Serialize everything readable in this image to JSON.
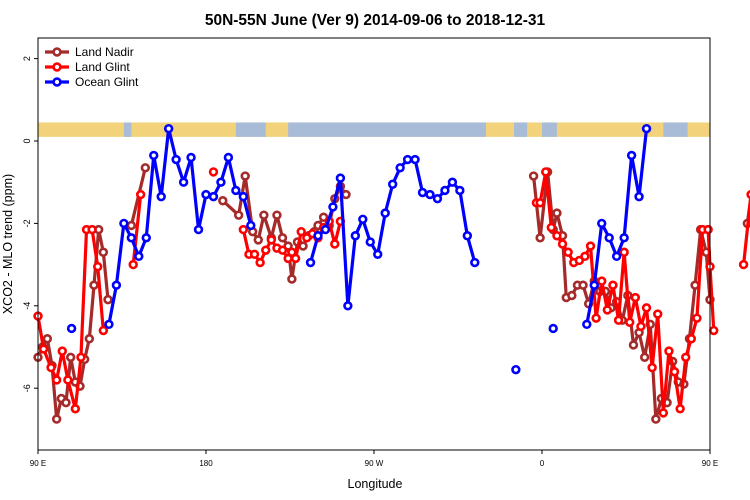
{
  "chart_data": {
    "type": "line",
    "title": "50N-55N June (Ver 9)   2014-09-06 to 2018-12-31",
    "xlabel": "Longitude",
    "ylabel": "XCO2 - MLO trend (ppm)",
    "xlim": [
      90,
      450
    ],
    "ylim": [
      -7.5,
      2.5
    ],
    "x_ticks": [
      {
        "value": 90,
        "label": "90 E"
      },
      {
        "value": 180,
        "label": "180"
      },
      {
        "value": 270,
        "label": "90 W"
      },
      {
        "value": 360,
        "label": "0"
      },
      {
        "value": 450,
        "label": "90 E"
      },
      {
        "value": 540,
        "label": "180"
      }
    ],
    "y_ticks": [
      {
        "value": -6,
        "label": "-6"
      },
      {
        "value": -4,
        "label": "-4"
      },
      {
        "value": -2,
        "label": "-2"
      },
      {
        "value": 0,
        "label": "0"
      },
      {
        "value": 2,
        "label": "2"
      }
    ],
    "grid": false,
    "legend_position": "top-left",
    "land_mask_band": {
      "y_range": [
        0.1,
        0.45
      ],
      "land_color": "#f2d27a",
      "ocean_color": "#a8bcd8"
    },
    "series": [
      {
        "name": "Land Nadir",
        "color": "#a52a2a",
        "points": [
          [
            90,
            -5.25
          ],
          [
            92.5,
            -5.0
          ],
          [
            95,
            -4.8
          ],
          [
            97.5,
            -5.45
          ],
          [
            100,
            -6.75
          ],
          [
            102.5,
            -6.25
          ],
          [
            105,
            -6.35
          ],
          [
            107.5,
            -5.25
          ],
          [
            110,
            -5.85
          ],
          [
            112.5,
            -5.95
          ],
          [
            115,
            -5.3
          ],
          [
            117.5,
            -4.8
          ],
          [
            120,
            -3.5
          ],
          [
            122.5,
            -2.15
          ],
          [
            125,
            -2.7
          ],
          [
            127.5,
            -3.85
          ],
          [
            140,
            -2.05
          ],
          [
            147.5,
            -0.65
          ],
          [
            189,
            -1.45
          ],
          [
            197.5,
            -1.8
          ],
          [
            201,
            -0.85
          ],
          [
            205,
            -2.2
          ],
          [
            208,
            -2.4
          ],
          [
            211,
            -1.8
          ],
          [
            215,
            -2.35
          ],
          [
            218,
            -1.8
          ],
          [
            221,
            -2.35
          ],
          [
            224,
            -2.55
          ],
          [
            226,
            -3.35
          ],
          [
            229,
            -2.45
          ],
          [
            232,
            -2.55
          ],
          [
            235,
            -2.3
          ],
          [
            238,
            -2.2
          ],
          [
            240,
            -2.05
          ],
          [
            243,
            -1.85
          ],
          [
            246,
            -2.05
          ],
          [
            249,
            -1.4
          ],
          [
            252,
            -1.1
          ],
          [
            255,
            -1.3
          ],
          [
            355.5,
            -0.85
          ],
          [
            359,
            -2.35
          ],
          [
            363,
            -0.75
          ],
          [
            366,
            -2.15
          ],
          [
            368,
            -1.75
          ],
          [
            371,
            -2.3
          ],
          [
            373,
            -3.8
          ],
          [
            376,
            -3.75
          ],
          [
            379,
            -3.5
          ],
          [
            382,
            -3.5
          ],
          [
            385,
            -3.95
          ],
          [
            388,
            -3.4
          ],
          [
            391,
            -3.65
          ],
          [
            394,
            -3.65
          ],
          [
            397,
            -4.05
          ],
          [
            400,
            -3.9
          ],
          [
            403,
            -4.35
          ],
          [
            406,
            -3.75
          ],
          [
            409,
            -4.95
          ],
          [
            412,
            -4.65
          ],
          [
            415,
            -5.25
          ],
          [
            418,
            -4.45
          ],
          [
            421,
            -6.75
          ],
          [
            424,
            -6.25
          ],
          [
            427,
            -6.35
          ],
          [
            430,
            -5.35
          ],
          [
            433,
            -5.85
          ],
          [
            436,
            -5.9
          ],
          [
            439,
            -4.8
          ],
          [
            442,
            -3.5
          ],
          [
            445,
            -2.15
          ],
          [
            448,
            -2.7
          ],
          [
            450,
            -3.85
          ],
          [
            470,
            -2.0
          ],
          [
            474,
            -0.65
          ]
        ]
      },
      {
        "name": "Land Glint",
        "color": "#ff0000",
        "points": [
          [
            90,
            -4.25
          ],
          [
            93,
            -5.05
          ],
          [
            97,
            -5.5
          ],
          [
            100,
            -5.8
          ],
          [
            103,
            -5.1
          ],
          [
            106,
            -5.8
          ],
          [
            110,
            -6.5
          ],
          [
            113,
            -5.25
          ],
          [
            116,
            -2.15
          ],
          [
            119,
            -2.15
          ],
          [
            122,
            -3.05
          ],
          [
            125,
            -4.6
          ],
          [
            141,
            -3.0
          ],
          [
            145,
            -1.3
          ],
          [
            184,
            -0.75
          ],
          [
            200,
            -2.15
          ],
          [
            203,
            -2.75
          ],
          [
            206,
            -2.75
          ],
          [
            209,
            -2.95
          ],
          [
            212,
            -2.65
          ],
          [
            215,
            -2.4
          ],
          [
            218,
            -2.6
          ],
          [
            221,
            -2.65
          ],
          [
            224,
            -2.85
          ],
          [
            226,
            -2.7
          ],
          [
            228,
            -2.85
          ],
          [
            231,
            -2.2
          ],
          [
            234,
            -2.35
          ],
          [
            237,
            -2.25
          ],
          [
            240,
            -2.35
          ],
          [
            243,
            -2.1
          ],
          [
            246,
            -1.95
          ],
          [
            249,
            -2.5
          ],
          [
            252,
            -1.95
          ],
          [
            357,
            -1.5
          ],
          [
            359,
            -1.5
          ],
          [
            362,
            -0.75
          ],
          [
            365,
            -2.1
          ],
          [
            368,
            -2.3
          ],
          [
            371,
            -2.5
          ],
          [
            374,
            -2.7
          ],
          [
            377,
            -2.95
          ],
          [
            380,
            -2.9
          ],
          [
            383,
            -2.8
          ],
          [
            386,
            -2.55
          ],
          [
            389,
            -4.3
          ],
          [
            392,
            -3.4
          ],
          [
            395,
            -4.1
          ],
          [
            398,
            -3.5
          ],
          [
            401,
            -4.35
          ],
          [
            404,
            -2.7
          ],
          [
            407,
            -4.4
          ],
          [
            410,
            -3.8
          ],
          [
            413,
            -4.5
          ],
          [
            416,
            -4.05
          ],
          [
            419,
            -5.5
          ],
          [
            422,
            -4.2
          ],
          [
            425,
            -6.6
          ],
          [
            428,
            -5.1
          ],
          [
            431,
            -5.6
          ],
          [
            434,
            -6.5
          ],
          [
            437,
            -5.25
          ],
          [
            440,
            -4.8
          ],
          [
            443,
            -4.3
          ],
          [
            446,
            -2.15
          ],
          [
            449,
            -2.15
          ],
          [
            450,
            -3.05
          ],
          [
            452,
            -4.6
          ],
          [
            468,
            -3.0
          ],
          [
            472,
            -1.3
          ]
        ]
      },
      {
        "name": "Ocean Glint",
        "color": "#0000ff",
        "points": [
          [
            108,
            -4.55
          ],
          [
            128,
            -4.45
          ],
          [
            132,
            -3.5
          ],
          [
            136,
            -2.0
          ],
          [
            140,
            -2.35
          ],
          [
            144,
            -2.8
          ],
          [
            148,
            -2.35
          ],
          [
            152,
            -0.35
          ],
          [
            156,
            -1.35
          ],
          [
            160,
            0.3
          ],
          [
            164,
            -0.45
          ],
          [
            168,
            -1.0
          ],
          [
            172,
            -0.4
          ],
          [
            176,
            -2.15
          ],
          [
            180,
            -1.3
          ],
          [
            184,
            -1.35
          ],
          [
            188,
            -1.0
          ],
          [
            192,
            -0.4
          ],
          [
            196,
            -1.2
          ],
          [
            200,
            -1.35
          ],
          [
            204,
            -2.05
          ],
          [
            236,
            -2.95
          ],
          [
            240,
            -2.3
          ],
          [
            244,
            -2.15
          ],
          [
            248,
            -1.6
          ],
          [
            252,
            -0.9
          ],
          [
            256,
            -4.0
          ],
          [
            260,
            -2.3
          ],
          [
            264,
            -1.9
          ],
          [
            268,
            -2.45
          ],
          [
            272,
            -2.75
          ],
          [
            276,
            -1.75
          ],
          [
            280,
            -1.05
          ],
          [
            284,
            -0.65
          ],
          [
            288,
            -0.45
          ],
          [
            292,
            -0.45
          ],
          [
            296,
            -1.25
          ],
          [
            300,
            -1.3
          ],
          [
            304,
            -1.4
          ],
          [
            308,
            -1.2
          ],
          [
            312,
            -1.0
          ],
          [
            316,
            -1.2
          ],
          [
            320,
            -2.3
          ],
          [
            324,
            -2.95
          ],
          [
            346,
            -5.55
          ],
          [
            366,
            -4.55
          ],
          [
            384,
            -4.45
          ],
          [
            388,
            -3.5
          ],
          [
            392,
            -2.0
          ],
          [
            396,
            -2.35
          ],
          [
            400,
            -2.8
          ],
          [
            404,
            -2.35
          ],
          [
            408,
            -0.35
          ],
          [
            412,
            -1.35
          ],
          [
            416,
            0.3
          ]
        ]
      }
    ]
  }
}
